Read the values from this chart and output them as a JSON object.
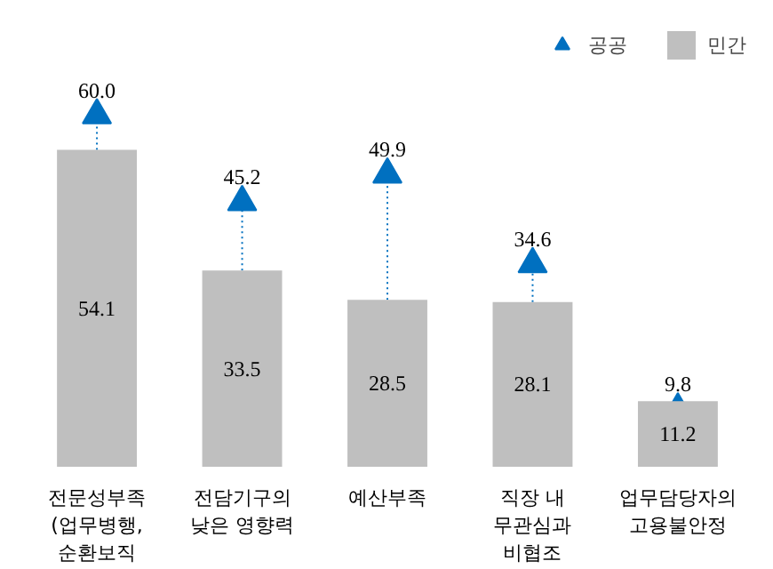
{
  "chart_data": {
    "type": "bar",
    "categories": [
      "전문성부족\n(업무병행,\n순환보직",
      "전담기구의\n낮은 영향력",
      "예산부족",
      "직장 내\n무관심과\n비협조",
      "업무담당자의\n고용불안정"
    ],
    "series": [
      {
        "name": "공공",
        "type": "scatter",
        "color": "#0070c0",
        "marker": "triangle",
        "values": [
          60.0,
          45.2,
          49.9,
          34.6,
          9.8
        ],
        "value_labels": [
          "60.0",
          "45.2",
          "49.9",
          "34.6",
          "9.8"
        ]
      },
      {
        "name": "민간",
        "color": "#bfbfbf",
        "values": [
          54.1,
          33.5,
          28.5,
          28.1,
          11.2
        ],
        "value_labels": [
          "54.1",
          "33.5",
          "28.5",
          "28.1",
          "11.2"
        ]
      }
    ],
    "legend": "top right"
  }
}
